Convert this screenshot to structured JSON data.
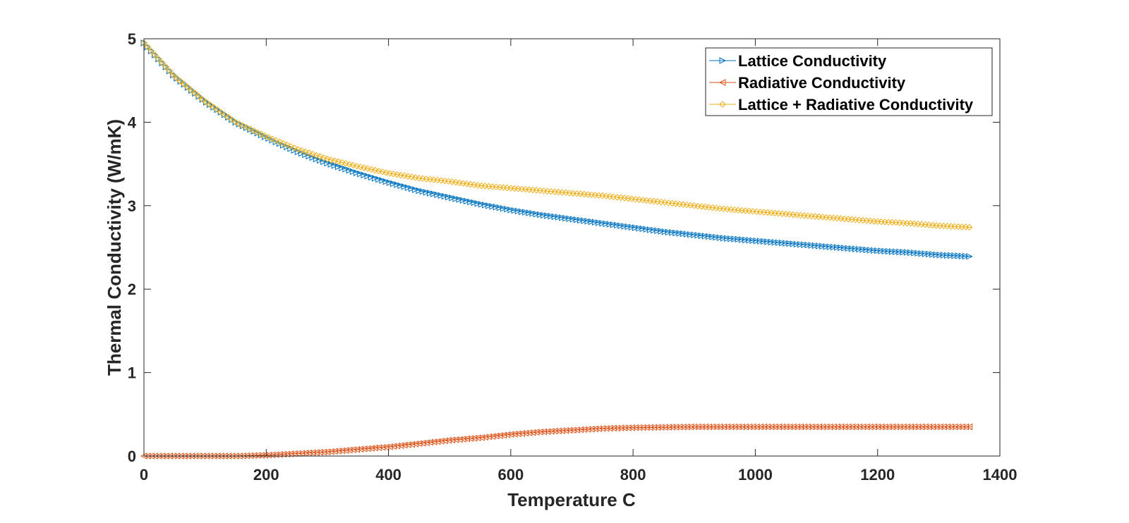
{
  "chart_data": {
    "type": "line",
    "title": "",
    "xlabel": "Temperature C",
    "ylabel": "Thermal Conductivity (W/mK)",
    "xlim": [
      0,
      1400
    ],
    "ylim": [
      0,
      5
    ],
    "x_ticks": [
      0,
      200,
      400,
      600,
      800,
      1000,
      1200,
      1400
    ],
    "y_ticks": [
      0,
      1,
      2,
      3,
      4,
      5
    ],
    "x_tick_labels": [
      "0",
      "200",
      "400",
      "600",
      "800",
      "1000",
      "1200",
      "1400"
    ],
    "y_tick_labels": [
      "0",
      "1",
      "2",
      "3",
      "4",
      "5"
    ],
    "grid": false,
    "legend_position": "top-right",
    "x": [
      0,
      50,
      100,
      150,
      200,
      250,
      300,
      350,
      400,
      450,
      500,
      550,
      600,
      650,
      700,
      750,
      800,
      850,
      900,
      950,
      1000,
      1050,
      1100,
      1150,
      1200,
      1250,
      1300,
      1355
    ],
    "series": [
      {
        "name": "Lattice Conductivity",
        "color": "#0072BD",
        "marker": "triangle-right",
        "values": [
          4.95,
          4.55,
          4.25,
          4.0,
          3.82,
          3.65,
          3.51,
          3.39,
          3.28,
          3.18,
          3.1,
          3.02,
          2.95,
          2.89,
          2.84,
          2.79,
          2.74,
          2.69,
          2.65,
          2.61,
          2.58,
          2.55,
          2.52,
          2.49,
          2.46,
          2.44,
          2.41,
          2.39
        ]
      },
      {
        "name": "Radiative Conductivity",
        "color": "#D95319",
        "marker": "triangle-left",
        "values": [
          0.0,
          0.0,
          0.0,
          0.0,
          0.01,
          0.03,
          0.05,
          0.08,
          0.11,
          0.15,
          0.19,
          0.22,
          0.26,
          0.29,
          0.31,
          0.33,
          0.34,
          0.345,
          0.35,
          0.35,
          0.35,
          0.35,
          0.35,
          0.35,
          0.35,
          0.35,
          0.35,
          0.35
        ]
      },
      {
        "name": "Lattice + Radiative Conductivity",
        "color": "#EDB120",
        "marker": "diamond",
        "values": [
          4.95,
          4.55,
          4.25,
          4.0,
          3.83,
          3.68,
          3.56,
          3.47,
          3.39,
          3.33,
          3.29,
          3.24,
          3.21,
          3.18,
          3.15,
          3.12,
          3.08,
          3.04,
          3.0,
          2.96,
          2.93,
          2.9,
          2.87,
          2.84,
          2.81,
          2.79,
          2.76,
          2.74
        ]
      }
    ]
  }
}
